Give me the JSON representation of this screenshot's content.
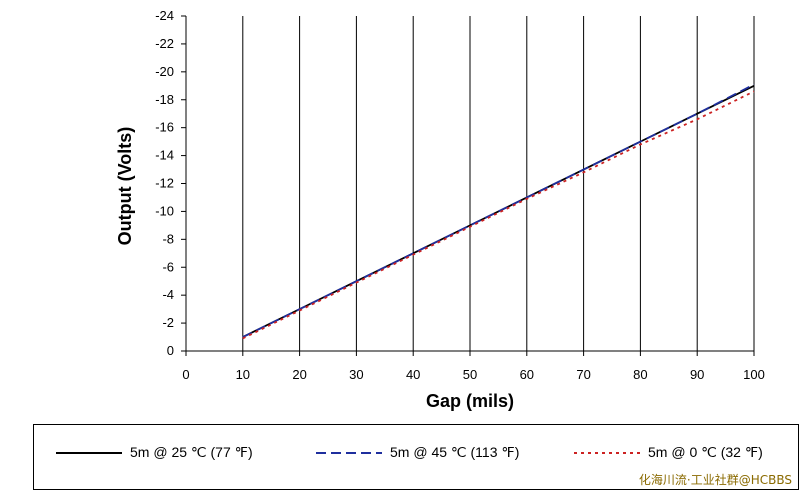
{
  "chart_data": {
    "type": "line",
    "xlabel": "Gap (mils)",
    "ylabel": "Output (Volts)",
    "xlim": [
      0,
      100
    ],
    "ylim": [
      -24,
      0
    ],
    "y_axis_inverted": true,
    "x_ticks": [
      "0",
      "10",
      "20",
      "30",
      "40",
      "50",
      "60",
      "70",
      "80",
      "90",
      "100"
    ],
    "y_ticks": [
      "0",
      "-2",
      "-4",
      "-6",
      "-8",
      "-10",
      "-12",
      "-14",
      "-16",
      "-18",
      "-20",
      "-22",
      "-24"
    ],
    "grid": "vertical",
    "legend_placement": "bottom",
    "series": [
      {
        "name": "5m @ 25 ℃ (77 ℉)",
        "color": "#000000",
        "style": "solid",
        "x": [
          10,
          20,
          30,
          40,
          50,
          60,
          70,
          80,
          90,
          100
        ],
        "y": [
          -1.0,
          -3.0,
          -5.0,
          -7.0,
          -9.0,
          -11.0,
          -13.0,
          -15.0,
          -17.0,
          -19.0
        ]
      },
      {
        "name": "5m @ 45 ℃ (113 ℉)",
        "color": "#1f2f9e",
        "style": "dashed",
        "x": [
          10,
          20,
          30,
          40,
          50,
          60,
          70,
          80,
          90,
          100
        ],
        "y": [
          -1.0,
          -3.0,
          -5.0,
          -7.0,
          -9.0,
          -11.0,
          -13.0,
          -15.0,
          -17.0,
          -19.1
        ]
      },
      {
        "name": "5m @ 0 ℃ (32 ℉)",
        "color": "#cc2222",
        "style": "dotted",
        "x": [
          10,
          20,
          30,
          40,
          50,
          60,
          70,
          80,
          90,
          100
        ],
        "y": [
          -0.9,
          -2.9,
          -4.9,
          -6.9,
          -8.9,
          -10.9,
          -12.8,
          -14.8,
          -16.6,
          -18.6
        ]
      }
    ]
  },
  "watermark": "化海川流·工业社群@HCBBS"
}
